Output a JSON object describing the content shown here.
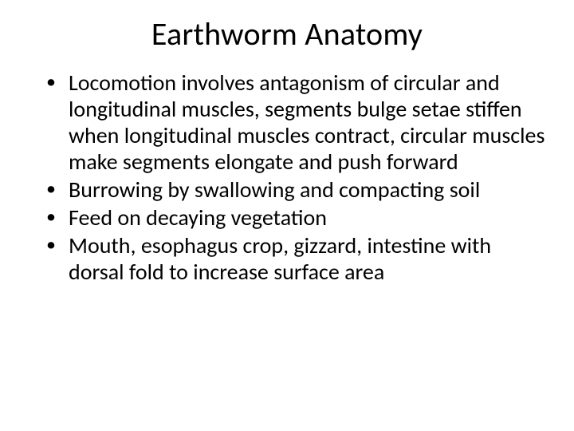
{
  "slide": {
    "title": "Earthworm Anatomy",
    "bullets": [
      "Locomotion involves antagonism of circular and longitudinal muscles, segments bulge setae stiffen when longitudinal muscles contract, circular muscles make segments elongate and push forward",
      "Burrowing by swallowing and compacting soil",
      "Feed on decaying vegetation",
      "Mouth, esophagus crop, gizzard, intestine with dorsal fold to increase surface area"
    ],
    "title_fontsize": 40,
    "body_fontsize": 28,
    "background_color": "#ffffff",
    "text_color": "#000000",
    "font_family": "Calibri"
  }
}
